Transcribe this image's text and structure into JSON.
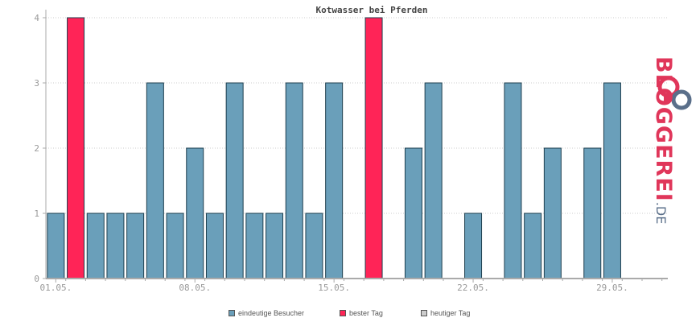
{
  "chart_data": {
    "type": "bar",
    "title": "Kotwasser bei Pferden",
    "ylim": [
      0,
      4
    ],
    "yticks": [
      0,
      1,
      2,
      3,
      4
    ],
    "xticks": [
      {
        "day": 1,
        "label": "01.05."
      },
      {
        "day": 8,
        "label": "08.05."
      },
      {
        "day": 15,
        "label": "15.05."
      },
      {
        "day": 22,
        "label": "22.05."
      },
      {
        "day": 29,
        "label": "29.05."
      }
    ],
    "days": [
      1,
      2,
      3,
      4,
      5,
      6,
      7,
      8,
      9,
      10,
      11,
      12,
      13,
      14,
      15,
      16,
      17,
      18,
      19,
      20,
      21,
      22,
      23,
      24,
      25,
      26,
      27,
      28,
      29,
      30,
      31
    ],
    "values": [
      1,
      4,
      1,
      1,
      1,
      3,
      1,
      2,
      1,
      3,
      1,
      1,
      3,
      1,
      3,
      0,
      4,
      0,
      2,
      3,
      0,
      1,
      0,
      3,
      1,
      2,
      0,
      2,
      3,
      0,
      0
    ],
    "best_days": [
      2,
      17
    ],
    "grid": "horizontal dotted",
    "legend_position": "bottom",
    "legend": [
      {
        "label": "eindeutige Besucher",
        "color": "#6a9fba"
      },
      {
        "label": "bester Tag",
        "color": "#ff2457"
      },
      {
        "label": "heutiger Tag",
        "color": "#cccccc"
      }
    ],
    "colors": {
      "normal": "#6a9fba",
      "best": "#ff2457",
      "bar_border": "#1e3f4f",
      "axis": "#aaaaaa",
      "grid": "#cccccc"
    }
  },
  "logo": {
    "name": "BLOGGEREI",
    "tld": ".DE"
  }
}
